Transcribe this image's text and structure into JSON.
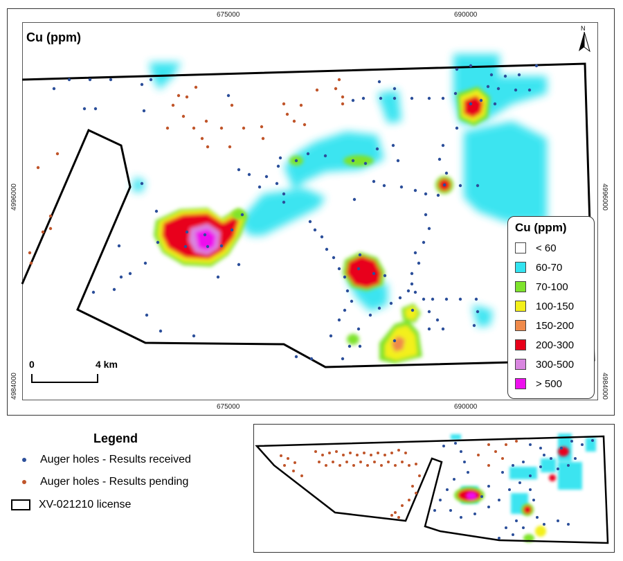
{
  "map": {
    "title": "Cu (ppm)",
    "north_label": "N",
    "x_ticks": [
      "675000",
      "690000"
    ],
    "y_ticks": [
      "4996000",
      "4984000"
    ],
    "scale_bar": {
      "start": "0",
      "end": "4 km"
    }
  },
  "cu_legend": {
    "title": "Cu (ppm)",
    "items": [
      {
        "label": "< 60",
        "color": "#ffffff"
      },
      {
        "label": "60-70",
        "color": "#33e3f0"
      },
      {
        "label": "70-100",
        "color": "#7ee32c"
      },
      {
        "label": "100-150",
        "color": "#f3f01a"
      },
      {
        "label": "150-200",
        "color": "#f08a4a"
      },
      {
        "label": "200-300",
        "color": "#e8001a"
      },
      {
        "label": "300-500",
        "color": "#d986e0"
      },
      {
        "label": "> 500",
        "color": "#ee10ee"
      }
    ]
  },
  "legend": {
    "title": "Legend",
    "items": [
      {
        "label": "Auger holes - Results received",
        "color": "#2c4f9a"
      },
      {
        "label": "Auger holes - Results pending",
        "color": "#c0552a"
      },
      {
        "label": "XV-021210 license",
        "color": "#000000"
      }
    ]
  }
}
